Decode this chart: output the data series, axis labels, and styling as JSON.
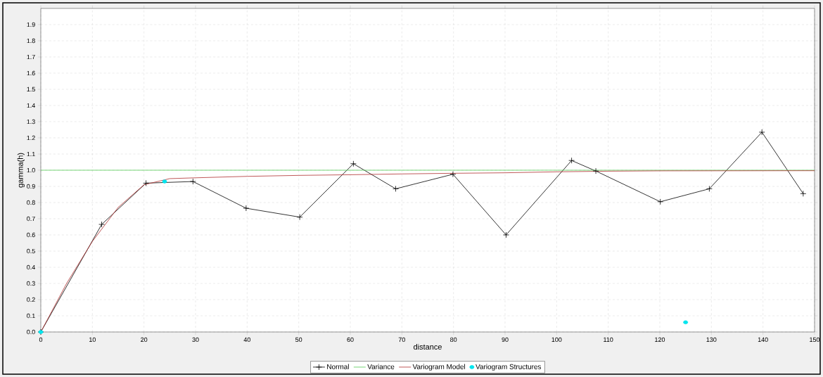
{
  "chart_data": {
    "type": "line",
    "xlabel": "distance",
    "ylabel": "gamma(h)",
    "xlim": [
      0,
      150
    ],
    "ylim": [
      0,
      2.0
    ],
    "xticks": [
      0,
      10,
      20,
      30,
      40,
      50,
      60,
      70,
      80,
      90,
      100,
      110,
      120,
      130,
      140,
      150
    ],
    "yticks": [
      {
        "value": 0,
        "label": "0.0"
      },
      0.1,
      0.2,
      0.3,
      0.4,
      0.5,
      0.6,
      0.7,
      0.8,
      0.9,
      {
        "value": 1,
        "label": "1.0"
      },
      1.1,
      1.2,
      1.3,
      1.4,
      1.5,
      1.6,
      1.7,
      1.8,
      1.9
    ],
    "grid": true,
    "legend": "bottom",
    "series": [
      {
        "name": "Normal",
        "color": "#000000",
        "marker": "cross",
        "x": [
          0,
          11.8,
          20.4,
          29.5,
          39.8,
          50.2,
          60.6,
          68.8,
          79.9,
          90.2,
          102.9,
          107.6,
          120.1,
          129.6,
          139.8,
          147.8
        ],
        "values": [
          0,
          0.665,
          0.92,
          0.93,
          0.765,
          0.71,
          1.04,
          0.885,
          0.975,
          0.6,
          1.06,
          0.995,
          0.805,
          0.885,
          1.235,
          0.855
        ]
      },
      {
        "name": "Variance",
        "color": "#55cc55",
        "x": [
          0,
          150
        ],
        "values": [
          1.0,
          1.0
        ]
      },
      {
        "name": "Variogram Model",
        "color": "#b03030",
        "x": [
          0,
          5,
          10,
          15,
          20,
          25,
          30,
          40,
          50,
          60,
          70,
          80,
          90,
          100,
          110,
          120,
          150
        ],
        "values": [
          0,
          0.3,
          0.56,
          0.77,
          0.91,
          0.948,
          0.953,
          0.962,
          0.968,
          0.972,
          0.977,
          0.981,
          0.984,
          0.99,
          0.994,
          0.996,
          0.997
        ]
      },
      {
        "name": "Variogram Structures",
        "type": "scatter",
        "color": "#00e5ee",
        "marker": "circle",
        "x": [
          0,
          24,
          125
        ],
        "values": [
          0,
          0.93,
          0.06
        ]
      }
    ]
  }
}
